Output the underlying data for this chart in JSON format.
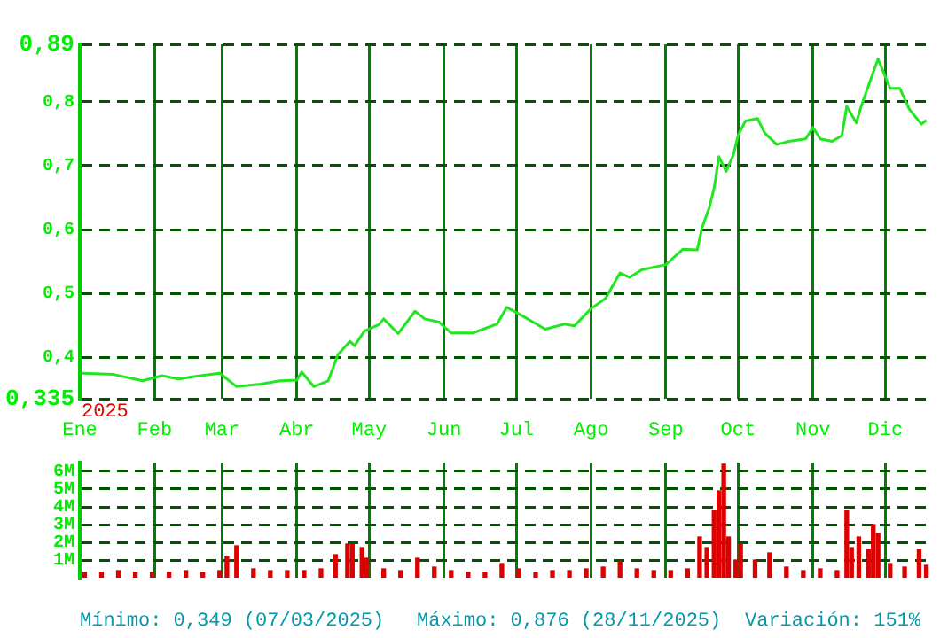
{
  "chart_data": [
    {
      "type": "line",
      "xlim": [
        "2025-01-01",
        "2025-12-20"
      ],
      "xticks": [
        {
          "value": "2025-01-01",
          "label": "Ene"
        },
        {
          "value": "2025-02-01",
          "label": "Feb"
        },
        {
          "value": "2025-03-01",
          "label": "Mar"
        },
        {
          "value": "2025-04-01",
          "label": "Abr"
        },
        {
          "value": "2025-05-01",
          "label": "May"
        },
        {
          "value": "2025-06-01",
          "label": "Jun"
        },
        {
          "value": "2025-07-01",
          "label": "Jul"
        },
        {
          "value": "2025-08-01",
          "label": "Ago"
        },
        {
          "value": "2025-09-01",
          "label": "Sep"
        },
        {
          "value": "2025-10-01",
          "label": "Oct"
        },
        {
          "value": "2025-11-01",
          "label": "Nov"
        },
        {
          "value": "2025-12-01",
          "label": "Dic"
        }
      ],
      "ylim": [
        0.335,
        0.89
      ],
      "yticks": [
        {
          "value": 0.335,
          "label": "0,335"
        },
        {
          "value": 0.4,
          "label": "0,4"
        },
        {
          "value": 0.5,
          "label": "0,5"
        },
        {
          "value": 0.6,
          "label": "0,6"
        },
        {
          "value": 0.7,
          "label": "0,7"
        },
        {
          "value": 0.8,
          "label": "0,8"
        },
        {
          "value": 0.89,
          "label": "0,89"
        }
      ],
      "grid": true,
      "legend": false,
      "marker": "none",
      "line_style": "solid",
      "annotations": [
        "2025"
      ],
      "series": [
        {
          "color": "#22e622",
          "x": [
            "2025-01-02",
            "2025-01-15",
            "2025-01-27",
            "2025-02-04",
            "2025-02-11",
            "2025-02-18",
            "2025-02-28",
            "2025-03-07",
            "2025-03-17",
            "2025-03-25",
            "2025-04-01",
            "2025-04-03",
            "2025-04-08",
            "2025-04-14",
            "2025-04-18",
            "2025-04-23",
            "2025-04-25",
            "2025-04-29",
            "2025-05-05",
            "2025-05-07",
            "2025-05-13",
            "2025-05-20",
            "2025-05-24",
            "2025-05-30",
            "2025-06-04",
            "2025-06-13",
            "2025-06-23",
            "2025-06-27",
            "2025-07-03",
            "2025-07-13",
            "2025-07-21",
            "2025-07-25",
            "2025-08-01",
            "2025-08-07",
            "2025-08-13",
            "2025-08-17",
            "2025-08-22",
            "2025-09-01",
            "2025-09-08",
            "2025-09-14",
            "2025-09-16",
            "2025-09-19",
            "2025-09-21",
            "2025-09-23",
            "2025-09-26",
            "2025-09-29",
            "2025-10-01",
            "2025-10-04",
            "2025-10-09",
            "2025-10-12",
            "2025-10-17",
            "2025-10-22",
            "2025-10-29",
            "2025-11-01",
            "2025-11-04",
            "2025-11-09",
            "2025-11-13",
            "2025-11-15",
            "2025-11-19",
            "2025-11-21",
            "2025-11-24",
            "2025-11-28",
            "2025-12-03",
            "2025-12-07",
            "2025-12-11",
            "2025-12-16",
            "2025-12-18"
          ],
          "values": [
            0.375,
            0.373,
            0.363,
            0.371,
            0.366,
            0.37,
            0.375,
            0.354,
            0.358,
            0.363,
            0.364,
            0.377,
            0.354,
            0.363,
            0.404,
            0.425,
            0.418,
            0.441,
            0.451,
            0.46,
            0.437,
            0.472,
            0.46,
            0.455,
            0.438,
            0.438,
            0.452,
            0.478,
            0.466,
            0.444,
            0.452,
            0.449,
            0.476,
            0.492,
            0.532,
            0.525,
            0.537,
            0.545,
            0.569,
            0.568,
            0.603,
            0.634,
            0.665,
            0.714,
            0.691,
            0.717,
            0.748,
            0.77,
            0.774,
            0.751,
            0.733,
            0.738,
            0.742,
            0.76,
            0.742,
            0.738,
            0.747,
            0.793,
            0.767,
            0.793,
            0.825,
            0.867,
            0.821,
            0.821,
            0.788,
            0.765,
            0.771
          ]
        }
      ]
    },
    {
      "type": "bar",
      "xlim": [
        "2025-01-01",
        "2025-12-20"
      ],
      "xticks": [
        {
          "value": "2025-01-01",
          "label": null
        },
        {
          "value": "2025-02-01",
          "label": null
        },
        {
          "value": "2025-03-01",
          "label": null
        },
        {
          "value": "2025-04-01",
          "label": null
        },
        {
          "value": "2025-05-01",
          "label": null
        },
        {
          "value": "2025-06-01",
          "label": null
        },
        {
          "value": "2025-07-01",
          "label": null
        },
        {
          "value": "2025-08-01",
          "label": null
        },
        {
          "value": "2025-09-01",
          "label": null
        },
        {
          "value": "2025-10-01",
          "label": null
        },
        {
          "value": "2025-11-01",
          "label": null
        },
        {
          "value": "2025-12-01",
          "label": null
        }
      ],
      "ylim": [
        0,
        6.5
      ],
      "yticks": [
        {
          "value": 1,
          "label": "1M"
        },
        {
          "value": 2,
          "label": "2M"
        },
        {
          "value": 3,
          "label": "3M"
        },
        {
          "value": 4,
          "label": "4M"
        },
        {
          "value": 5,
          "label": "5M"
        },
        {
          "value": 6,
          "label": "6M"
        }
      ],
      "grid": true,
      "legend": false,
      "tick_labels": "y",
      "annotations": [
        "Mínimo: 0,349 (07/03/2025)",
        "Máximo: 0,876 (28/11/2025)",
        "Variación: 151%"
      ],
      "series": [
        {
          "color": "#dd0000",
          "x": [
            "2025-01-03",
            "2025-01-10",
            "2025-01-17",
            "2025-01-24",
            "2025-01-31",
            "2025-02-07",
            "2025-02-14",
            "2025-02-21",
            "2025-02-28",
            "2025-03-03",
            "2025-03-07",
            "2025-03-14",
            "2025-03-21",
            "2025-03-28",
            "2025-04-04",
            "2025-04-11",
            "2025-04-17",
            "2025-04-22",
            "2025-04-24",
            "2025-04-28",
            "2025-04-30",
            "2025-05-07",
            "2025-05-14",
            "2025-05-21",
            "2025-05-28",
            "2025-06-04",
            "2025-06-11",
            "2025-06-18",
            "2025-06-25",
            "2025-07-02",
            "2025-07-09",
            "2025-07-16",
            "2025-07-23",
            "2025-07-30",
            "2025-08-06",
            "2025-08-13",
            "2025-08-20",
            "2025-08-27",
            "2025-09-03",
            "2025-09-10",
            "2025-09-15",
            "2025-09-18",
            "2025-09-21",
            "2025-09-23",
            "2025-09-25",
            "2025-09-27",
            "2025-09-30",
            "2025-10-02",
            "2025-10-08",
            "2025-10-14",
            "2025-10-21",
            "2025-10-28",
            "2025-11-04",
            "2025-11-11",
            "2025-11-15",
            "2025-11-17",
            "2025-11-20",
            "2025-11-24",
            "2025-11-26",
            "2025-11-28",
            "2025-12-03",
            "2025-12-09",
            "2025-12-15",
            "2025-12-18"
          ],
          "values": [
            0.3,
            0.3,
            0.4,
            0.3,
            0.3,
            0.3,
            0.4,
            0.3,
            0.4,
            1.2,
            1.8,
            0.5,
            0.4,
            0.4,
            0.4,
            0.5,
            1.3,
            1.9,
            1.9,
            1.7,
            1.1,
            0.5,
            0.4,
            1.1,
            0.6,
            0.4,
            0.3,
            0.3,
            0.8,
            0.5,
            0.3,
            0.4,
            0.4,
            0.5,
            0.6,
            0.9,
            0.5,
            0.4,
            0.4,
            0.5,
            2.3,
            1.7,
            3.8,
            4.9,
            6.4,
            2.3,
            1.0,
            1.9,
            1.0,
            1.4,
            0.6,
            0.4,
            0.5,
            0.4,
            3.8,
            1.7,
            2.3,
            1.6,
            3.0,
            2.5,
            0.8,
            0.6,
            1.6,
            0.7
          ]
        }
      ]
    }
  ]
}
